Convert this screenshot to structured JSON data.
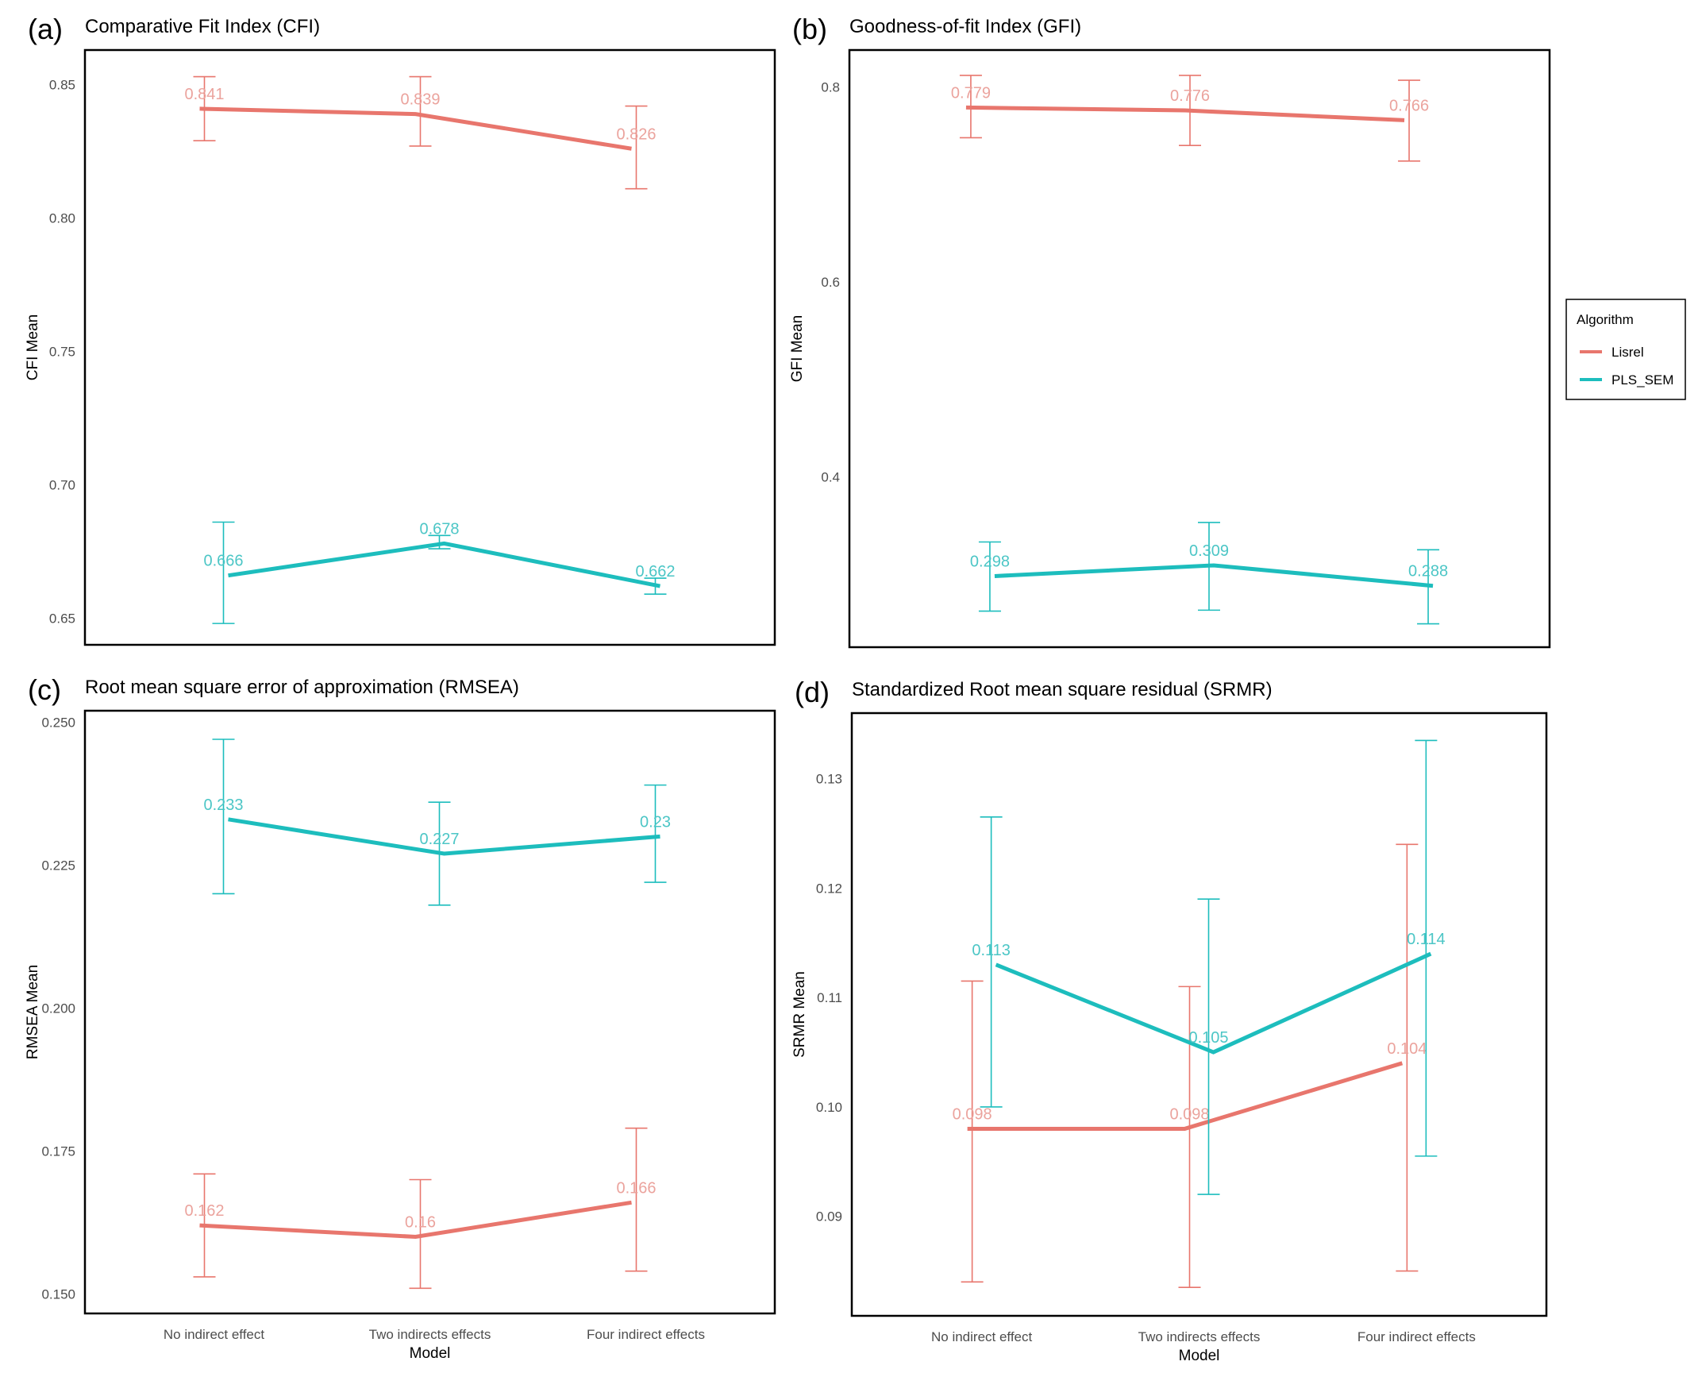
{
  "chart_data": [
    {
      "type": "line",
      "panel": "(a)",
      "title": "Comparative Fit Index (CFI)",
      "ylabel": "CFI Mean",
      "xlabel": "",
      "categories": [
        "No indirect effect",
        "Two indirects effects",
        "Four indirect effects"
      ],
      "ylim": [
        0.64,
        0.863
      ],
      "yticks": [
        "0.65",
        "0.70",
        "0.75",
        "0.80",
        "0.85"
      ],
      "series": [
        {
          "name": "Lisrel",
          "values": [
            0.841,
            0.839,
            0.826
          ],
          "labels": [
            "0.841",
            "0.839",
            "0.826"
          ],
          "lower": [
            0.829,
            0.827,
            0.811
          ],
          "upper": [
            0.853,
            0.853,
            0.842
          ]
        },
        {
          "name": "PLS_SEM",
          "values": [
            0.666,
            0.678,
            0.662
          ],
          "labels": [
            "0.666",
            "0.678",
            "0.662"
          ],
          "lower": [
            0.648,
            0.676,
            0.659
          ],
          "upper": [
            0.686,
            0.681,
            0.665
          ]
        }
      ]
    },
    {
      "type": "line",
      "panel": "(b)",
      "title": "Goodness-of-fit Index (GFI)",
      "ylabel": "GFI Mean",
      "xlabel": "",
      "categories": [
        "No indirect effect",
        "Two indirects effects",
        "Four indirect effects"
      ],
      "ylim": [
        0.225,
        0.838
      ],
      "yticks": [
        "0.4",
        "0.6",
        "0.8"
      ],
      "series": [
        {
          "name": "Lisrel",
          "values": [
            0.779,
            0.776,
            0.766
          ],
          "labels": [
            "0.779",
            "0.776",
            "0.766"
          ],
          "lower": [
            0.748,
            0.74,
            0.724
          ],
          "upper": [
            0.812,
            0.812,
            0.807
          ]
        },
        {
          "name": "PLS_SEM",
          "values": [
            0.298,
            0.309,
            0.288
          ],
          "labels": [
            "0.298",
            "0.309",
            "0.288"
          ],
          "lower": [
            0.262,
            0.263,
            0.249
          ],
          "upper": [
            0.333,
            0.353,
            0.325
          ]
        }
      ]
    },
    {
      "type": "line",
      "panel": "(c)",
      "title": "Root mean square error of approximation (RMSEA)",
      "ylabel": "RMSEA Mean",
      "xlabel": "Model",
      "categories": [
        "No indirect effect",
        "Two indirects effects",
        "Four indirect effects"
      ],
      "ylim": [
        0.1466,
        0.252
      ],
      "yticks": [
        "0.150",
        "0.175",
        "0.200",
        "0.225",
        "0.250"
      ],
      "series": [
        {
          "name": "Lisrel",
          "values": [
            0.162,
            0.16,
            0.166
          ],
          "labels": [
            "0.162",
            "0.16",
            "0.166"
          ],
          "lower": [
            0.153,
            0.151,
            0.154
          ],
          "upper": [
            0.171,
            0.17,
            0.179
          ]
        },
        {
          "name": "PLS_SEM",
          "values": [
            0.233,
            0.227,
            0.23
          ],
          "labels": [
            "0.233",
            "0.227",
            "0.23"
          ],
          "lower": [
            0.22,
            0.218,
            0.222
          ],
          "upper": [
            0.247,
            0.236,
            0.239
          ]
        }
      ]
    },
    {
      "type": "line",
      "panel": "(d)",
      "title": "Standardized Root mean square residual (SRMR)",
      "ylabel": "SRMR Mean",
      "xlabel": "Model",
      "categories": [
        "No indirect effect",
        "Two indirects effects",
        "Four indirect effects"
      ],
      "ylim": [
        0.0809,
        0.136
      ],
      "yticks": [
        "0.09",
        "0.10",
        "0.11",
        "0.12",
        "0.13"
      ],
      "series": [
        {
          "name": "Lisrel",
          "values": [
            0.098,
            0.098,
            0.104
          ],
          "labels": [
            "0.098",
            "0.098",
            "0.104"
          ],
          "lower": [
            0.084,
            0.0835,
            0.085
          ],
          "upper": [
            0.1115,
            0.111,
            0.124
          ]
        },
        {
          "name": "PLS_SEM",
          "values": [
            0.113,
            0.105,
            0.114
          ],
          "labels": [
            "0.113",
            "0.105",
            "0.114"
          ],
          "lower": [
            0.1,
            0.092,
            0.0955
          ],
          "upper": [
            0.1265,
            0.119,
            0.1335
          ]
        }
      ]
    }
  ],
  "legend": {
    "title": "Algorithm",
    "placement": "right",
    "items": [
      {
        "name": "Lisrel",
        "color": "#E8766D"
      },
      {
        "name": "PLS_SEM",
        "color": "#1DBDBD"
      }
    ]
  },
  "colors": {
    "Lisrel": "#E8766D",
    "PLS_SEM": "#1DBDBD",
    "Lisrel_label": "#EBA39D",
    "PLS_SEM_label": "#4CC6C6"
  }
}
